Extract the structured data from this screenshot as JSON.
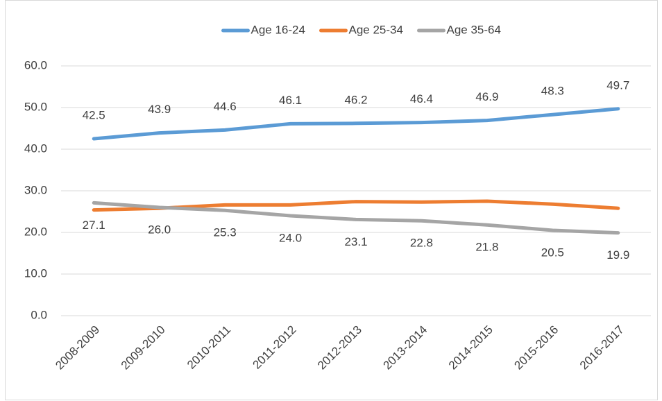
{
  "chart_data": {
    "type": "line",
    "categories": [
      "2008-2009",
      "2009-2010",
      "2010-2011",
      "2011-2012",
      "2012-2013",
      "2013-2014",
      "2014-2015",
      "2015-2016",
      "2016-2017"
    ],
    "series": [
      {
        "name": "Age 16-24",
        "color": "#5b9bd5",
        "values": [
          42.5,
          43.9,
          44.6,
          46.1,
          46.2,
          46.4,
          46.9,
          48.3,
          49.7
        ],
        "data_labels": "above"
      },
      {
        "name": "Age 25-34",
        "color": "#ed7d31",
        "values": [
          25.4,
          25.8,
          26.6,
          26.6,
          27.4,
          27.3,
          27.5,
          26.8,
          25.8
        ]
      },
      {
        "name": "Age 35-64",
        "color": "#a5a5a5",
        "values": [
          27.1,
          26.0,
          25.3,
          24.0,
          23.1,
          22.8,
          21.8,
          20.5,
          19.9
        ],
        "value_labels": [
          "27.1",
          "26.0",
          "25.3",
          "24.0",
          "23.1",
          "22.8",
          "21.8",
          "20.5",
          "19.9"
        ],
        "data_labels": "below"
      }
    ],
    "ylim": [
      0,
      60
    ],
    "yticks": [
      {
        "value": 0,
        "label": "0.0"
      },
      {
        "value": 10,
        "label": "10.0"
      },
      {
        "value": 20,
        "label": "20.0"
      },
      {
        "value": 30,
        "label": "30.0"
      },
      {
        "value": 40,
        "label": "40.0"
      },
      {
        "value": 50,
        "label": "50.0"
      },
      {
        "value": 60,
        "label": "60.0"
      }
    ],
    "grid": true,
    "legend": "top"
  }
}
